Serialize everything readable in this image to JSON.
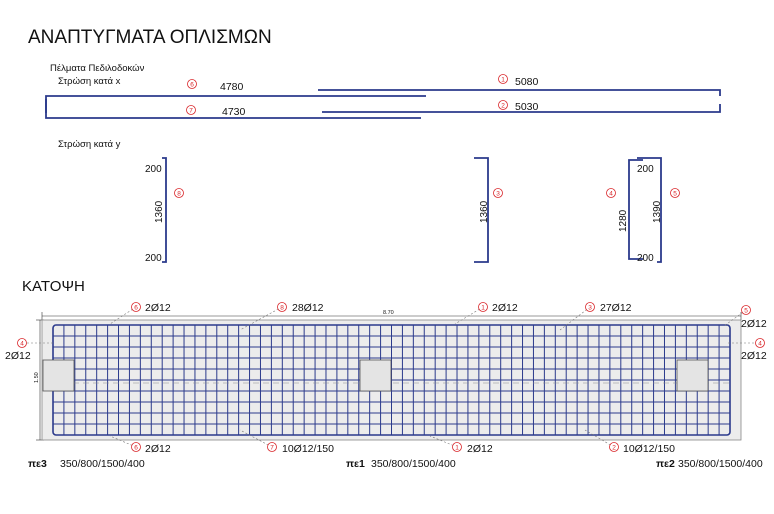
{
  "title": "ΑΝΑΠΤΥΓΜΑΤΑ ΟΠΛΙΣΜΩΝ",
  "subtitle": "Πέλματα Πεδιλοδοκών",
  "layer_x": "Στρώση κατά x",
  "layer_y": "Στρώση κατά y",
  "plan_title": "ΚΑΤΟΨΗ",
  "x_bars": [
    {
      "mark": "6",
      "length": "4780"
    },
    {
      "mark": "1",
      "length": "5080"
    },
    {
      "mark": "7",
      "length": "4730"
    },
    {
      "mark": "2",
      "length": "5030"
    }
  ],
  "y_bars": [
    {
      "mark": "8",
      "top": "200",
      "middle": "1360",
      "bottom": "200"
    },
    {
      "mark": "3",
      "middle": "1360"
    },
    {
      "mark": "4",
      "top": "200",
      "middle": "1280",
      "bottom": "200"
    },
    {
      "mark": "5",
      "middle": "1390"
    }
  ],
  "plan": {
    "length_dim": "8.70",
    "width_dim": "1.50",
    "top_labels": [
      {
        "mark": "6",
        "text": "2Ø12"
      },
      {
        "mark": "8",
        "text": "28Ø12"
      },
      {
        "mark": "1",
        "text": "2Ø12"
      },
      {
        "mark": "3",
        "text": "27Ø12"
      },
      {
        "mark": "5",
        "text": "2Ø12"
      }
    ],
    "bottom_labels": [
      {
        "mark": "6",
        "text": "2Ø12"
      },
      {
        "mark": "7",
        "text": "10Ø12/150"
      },
      {
        "mark": "1",
        "text": "2Ø12"
      },
      {
        "mark": "2",
        "text": "10Ø12/150"
      }
    ],
    "left_label": {
      "mark": "4",
      "text": "2Ø12"
    },
    "right_label": {
      "mark": "4",
      "text": "2Ø12"
    },
    "columns": [
      {
        "name": "πε3",
        "spec": "350/800/1500/400"
      },
      {
        "name": "πε1",
        "spec": "350/800/1500/400"
      },
      {
        "name": "πε2",
        "spec": "350/800/1500/400"
      }
    ]
  }
}
